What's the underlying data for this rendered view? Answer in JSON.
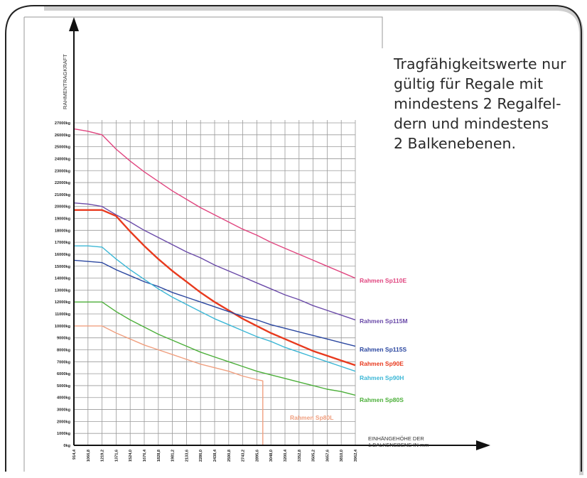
{
  "note": {
    "lines": [
      "Tragfähigkeitswerte nur",
      "gültig für Regale mit",
      "mindestens 2 Regalfel-",
      "dern und mindestens",
      "2 Balkenebenen."
    ]
  },
  "colors": {
    "grid": "#9a9a9a",
    "axis": "#111111",
    "frame": "#222222",
    "shadow": "#bfbfbf"
  },
  "chart_data": {
    "type": "line",
    "title": "",
    "ylabel": "RAHMENTRAGKRAFT",
    "xlabel_lines": [
      "EINHÄNGEHÖHE DER",
      "1.BALKENEBENE IN mm"
    ],
    "x": [
      914.4,
      1066.8,
      1219.2,
      1371.6,
      1524.0,
      1676.4,
      1828.8,
      1981.2,
      2133.6,
      2286.0,
      2438.4,
      2590.8,
      2743.2,
      2895.6,
      3048.0,
      3200.4,
      3352.8,
      3505.2,
      3657.6,
      3810.0,
      3962.4
    ],
    "x_tick_labels": [
      "914,4",
      "1066,8",
      "1219,2",
      "1371,6",
      "1524,0",
      "1676,4",
      "1828,8",
      "1981,2",
      "2133,6",
      "2286,0",
      "2438,4",
      "2590,8",
      "2743,2",
      "2895,6",
      "3048,0",
      "3200,4",
      "3352,8",
      "3505,2",
      "3657,6",
      "3810,0",
      "3962,4"
    ],
    "y_ticks": [
      0,
      1000,
      2000,
      3000,
      4000,
      5000,
      6000,
      7000,
      8000,
      9000,
      10000,
      11000,
      12000,
      13000,
      14000,
      15000,
      16000,
      17000,
      18000,
      19000,
      20000,
      21000,
      22000,
      23000,
      24000,
      25000,
      26000,
      27000
    ],
    "y_tick_labels": [
      "0kg",
      "1000kg",
      "2000kg",
      "3000kg",
      "4000kg",
      "5000kg",
      "6000kg",
      "7000kg",
      "8000kg",
      "9000kg",
      "10000kg",
      "11000kg",
      "12000kg",
      "13000kg",
      "14000kg",
      "15000kg",
      "16000kg",
      "17000kg",
      "18000kg",
      "19000kg",
      "20000kg",
      "21000kg",
      "22000kg",
      "23000kg",
      "24000kg",
      "25000kg",
      "26000kg",
      "27000kg"
    ],
    "ylim": [
      0,
      27000
    ],
    "grid": true,
    "series": [
      {
        "name": "Rahmen  Sp110E",
        "color": "#e0457f",
        "points": [
          [
            914.4,
            26500
          ],
          [
            1066.8,
            26300
          ],
          [
            1219.2,
            26000
          ],
          [
            1371.6,
            24800
          ],
          [
            1524.0,
            23800
          ],
          [
            1676.4,
            22900
          ],
          [
            1828.8,
            22100
          ],
          [
            1981.2,
            21300
          ],
          [
            2133.6,
            20600
          ],
          [
            2286.0,
            19900
          ],
          [
            2438.4,
            19300
          ],
          [
            2590.8,
            18700
          ],
          [
            2743.2,
            18100
          ],
          [
            2895.6,
            17600
          ],
          [
            3048.0,
            17000
          ],
          [
            3200.4,
            16500
          ],
          [
            3352.8,
            16000
          ],
          [
            3505.2,
            15500
          ],
          [
            3657.6,
            15000
          ],
          [
            3810.0,
            14500
          ],
          [
            3962.4,
            14000
          ]
        ]
      },
      {
        "name": "Rahmen  Sp115M",
        "color": "#6a4aa8",
        "points": [
          [
            914.4,
            20300
          ],
          [
            1066.8,
            20200
          ],
          [
            1219.2,
            20000
          ],
          [
            1371.6,
            19300
          ],
          [
            1524.0,
            18700
          ],
          [
            1676.4,
            18000
          ],
          [
            1828.8,
            17400
          ],
          [
            1981.2,
            16800
          ],
          [
            2133.6,
            16200
          ],
          [
            2286.0,
            15700
          ],
          [
            2438.4,
            15100
          ],
          [
            2590.8,
            14600
          ],
          [
            2743.2,
            14100
          ],
          [
            2895.6,
            13600
          ],
          [
            3048.0,
            13100
          ],
          [
            3200.4,
            12600
          ],
          [
            3352.8,
            12200
          ],
          [
            3505.2,
            11700
          ],
          [
            3657.6,
            11300
          ],
          [
            3810.0,
            10900
          ],
          [
            3962.4,
            10500
          ]
        ]
      },
      {
        "name": "Rahmen  Sp90E",
        "color": "#e83a1e",
        "points": [
          [
            914.4,
            19700
          ],
          [
            1066.8,
            19700
          ],
          [
            1219.2,
            19700
          ],
          [
            1371.6,
            19200
          ],
          [
            1524.0,
            17900
          ],
          [
            1676.4,
            16700
          ],
          [
            1828.8,
            15600
          ],
          [
            1981.2,
            14600
          ],
          [
            2133.6,
            13700
          ],
          [
            2286.0,
            12800
          ],
          [
            2438.4,
            12000
          ],
          [
            2590.8,
            11300
          ],
          [
            2743.2,
            10600
          ],
          [
            2895.6,
            10000
          ],
          [
            3048.0,
            9400
          ],
          [
            3200.4,
            8900
          ],
          [
            3352.8,
            8400
          ],
          [
            3505.2,
            7900
          ],
          [
            3657.6,
            7500
          ],
          [
            3810.0,
            7100
          ],
          [
            3962.4,
            6700
          ]
        ]
      },
      {
        "name": "Rahmen  Sp115S",
        "color": "#2b47a0",
        "points": [
          [
            914.4,
            15500
          ],
          [
            1066.8,
            15400
          ],
          [
            1219.2,
            15300
          ],
          [
            1371.6,
            14700
          ],
          [
            1524.0,
            14200
          ],
          [
            1676.4,
            13700
          ],
          [
            1828.8,
            13300
          ],
          [
            1981.2,
            12800
          ],
          [
            2133.6,
            12400
          ],
          [
            2286.0,
            12000
          ],
          [
            2438.4,
            11600
          ],
          [
            2590.8,
            11200
          ],
          [
            2743.2,
            10800
          ],
          [
            2895.6,
            10500
          ],
          [
            3048.0,
            10100
          ],
          [
            3200.4,
            9800
          ],
          [
            3352.8,
            9500
          ],
          [
            3505.2,
            9200
          ],
          [
            3657.6,
            8900
          ],
          [
            3810.0,
            8600
          ],
          [
            3962.4,
            8300
          ]
        ]
      },
      {
        "name": "Rahmen  Sp90H",
        "color": "#3cb7d6",
        "points": [
          [
            914.4,
            16700
          ],
          [
            1066.8,
            16700
          ],
          [
            1219.2,
            16600
          ],
          [
            1371.6,
            15600
          ],
          [
            1524.0,
            14700
          ],
          [
            1676.4,
            13900
          ],
          [
            1828.8,
            13100
          ],
          [
            1981.2,
            12400
          ],
          [
            2133.6,
            11800
          ],
          [
            2286.0,
            11200
          ],
          [
            2438.4,
            10600
          ],
          [
            2590.8,
            10100
          ],
          [
            2743.2,
            9600
          ],
          [
            2895.6,
            9100
          ],
          [
            3048.0,
            8700
          ],
          [
            3200.4,
            8200
          ],
          [
            3352.8,
            7800
          ],
          [
            3505.2,
            7400
          ],
          [
            3657.6,
            7000
          ],
          [
            3810.0,
            6600
          ],
          [
            3962.4,
            6200
          ]
        ]
      },
      {
        "name": "Rahmen  Sp80S",
        "color": "#4caf3a",
        "points": [
          [
            914.4,
            12000
          ],
          [
            1066.8,
            12000
          ],
          [
            1219.2,
            12000
          ],
          [
            1371.6,
            11200
          ],
          [
            1524.0,
            10500
          ],
          [
            1676.4,
            9900
          ],
          [
            1828.8,
            9300
          ],
          [
            1981.2,
            8800
          ],
          [
            2133.6,
            8300
          ],
          [
            2286.0,
            7800
          ],
          [
            2438.4,
            7400
          ],
          [
            2590.8,
            7000
          ],
          [
            2743.2,
            6600
          ],
          [
            2895.6,
            6200
          ],
          [
            3048.0,
            5900
          ],
          [
            3200.4,
            5600
          ],
          [
            3352.8,
            5300
          ],
          [
            3505.2,
            5000
          ],
          [
            3657.6,
            4700
          ],
          [
            3810.0,
            4500
          ],
          [
            3962.4,
            4200
          ]
        ]
      },
      {
        "name": "Rahmen  Sp80L",
        "color": "#f0a080",
        "points": [
          [
            914.4,
            10000
          ],
          [
            1066.8,
            10000
          ],
          [
            1219.2,
            10000
          ],
          [
            1371.6,
            9400
          ],
          [
            1524.0,
            8900
          ],
          [
            1676.4,
            8400
          ],
          [
            1828.8,
            8000
          ],
          [
            1981.2,
            7600
          ],
          [
            2133.6,
            7200
          ],
          [
            2286.0,
            6800
          ],
          [
            2438.4,
            6500
          ],
          [
            2590.8,
            6200
          ],
          [
            2743.2,
            5800
          ],
          [
            2895.6,
            5500
          ],
          [
            2960.0,
            5400
          ],
          [
            2960.0,
            0
          ]
        ]
      }
    ]
  }
}
